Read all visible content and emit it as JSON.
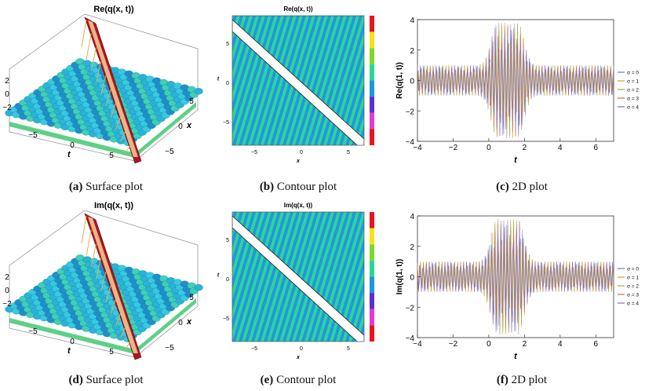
{
  "figure": {
    "captions": [
      {
        "tag": "(a)",
        "text": "Surface plot"
      },
      {
        "tag": "(b)",
        "text": "Contour plot"
      },
      {
        "tag": "(c)",
        "text": "2D plot"
      },
      {
        "tag": "(d)",
        "text": "Surface plot"
      },
      {
        "tag": "(e)",
        "text": "Contour plot"
      },
      {
        "tag": "(f)",
        "text": "2D plot"
      }
    ]
  },
  "chart_data": [
    {
      "type": "surface",
      "title": "Re(q(x, t))",
      "xlabel": "x",
      "ylabel": "t",
      "z_ticks": [
        "2",
        "0",
        "−2"
      ],
      "t_ticks": [
        "−5",
        "0",
        "5"
      ],
      "x_ticks": [
        "5",
        "0",
        "−5"
      ]
    },
    {
      "type": "contour",
      "title": "Re(q(x, t))",
      "xlabel": "x",
      "ylabel": "t",
      "x_ticks": [
        "−5",
        "0",
        "5"
      ],
      "y_ticks": [
        "5",
        "0",
        "−5"
      ],
      "colorbar": [
        "#e8141e",
        "#f6e21a",
        "#7fd92a",
        "#2fd596",
        "#2196e3",
        "#5a2fd8",
        "#e33ad0",
        "#e8141e"
      ]
    },
    {
      "type": "line",
      "title": "",
      "xlabel": "t",
      "ylabel": "Re(q(1, t))",
      "xlim": [
        -4,
        7
      ],
      "ylim": [
        -4,
        4
      ],
      "x_ticks": [
        "−4",
        "−2",
        "0",
        "2",
        "4",
        "6"
      ],
      "y_ticks": [
        "4",
        "2",
        "0",
        "−2",
        "−4"
      ],
      "series": [
        {
          "name": "σ = 0",
          "color": "#5b7fc7"
        },
        {
          "name": "σ = 1",
          "color": "#e19a1e"
        },
        {
          "name": "σ = 2",
          "color": "#8db23c"
        },
        {
          "name": "σ = 3",
          "color": "#e0662f"
        },
        {
          "name": "σ = 4",
          "color": "#7a6cc9"
        }
      ]
    },
    {
      "type": "surface",
      "title": "Im(q(x, t))",
      "xlabel": "x",
      "ylabel": "t",
      "z_ticks": [
        "2",
        "0",
        "−2"
      ],
      "t_ticks": [
        "−5",
        "0",
        "5"
      ],
      "x_ticks": [
        "5",
        "0",
        "−5"
      ]
    },
    {
      "type": "contour",
      "title": "Im(q(x, t))",
      "xlabel": "x",
      "ylabel": "t",
      "x_ticks": [
        "−5",
        "0",
        "5"
      ],
      "y_ticks": [
        "5",
        "0",
        "−5"
      ],
      "colorbar": [
        "#e8141e",
        "#f6e21a",
        "#7fd92a",
        "#2fd596",
        "#2196e3",
        "#5a2fd8",
        "#e33ad0",
        "#e8141e"
      ]
    },
    {
      "type": "line",
      "title": "",
      "xlabel": "t",
      "ylabel": "Im(q(1, t))",
      "xlim": [
        -4,
        7
      ],
      "ylim": [
        -4,
        4
      ],
      "x_ticks": [
        "−4",
        "−2",
        "0",
        "2",
        "4",
        "6"
      ],
      "y_ticks": [
        "4",
        "2",
        "0",
        "−2",
        "−4"
      ],
      "series": [
        {
          "name": "σ = 0",
          "color": "#5b7fc7"
        },
        {
          "name": "σ = 1",
          "color": "#e19a1e"
        },
        {
          "name": "σ = 2",
          "color": "#8db23c"
        },
        {
          "name": "σ = 3",
          "color": "#e0662f"
        },
        {
          "name": "σ = 4",
          "color": "#7a6cc9"
        }
      ]
    }
  ]
}
